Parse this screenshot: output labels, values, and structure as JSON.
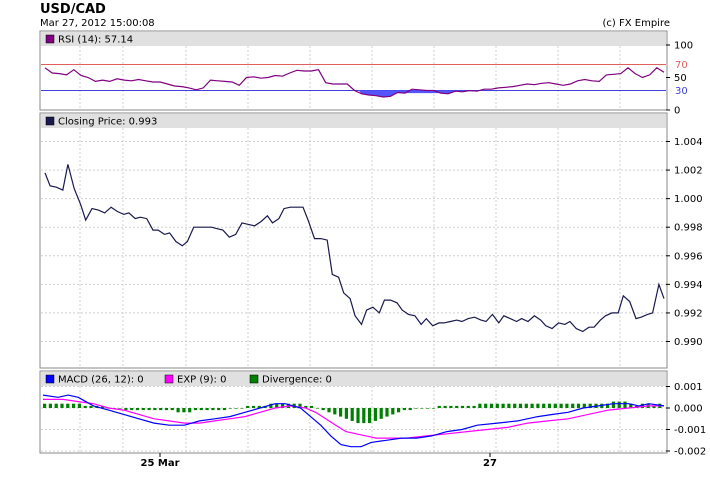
{
  "header": {
    "title": "USD/CAD",
    "timestamp": "Mar 27, 2012 15:00:08",
    "credit": "(c) FX Empire"
  },
  "colors": {
    "rsi": "#800080",
    "rsi_fill": "#5555ff",
    "rsi_upper": "#e06060",
    "rsi_lower": "#4040e0",
    "price": "#1a1a4e",
    "macd": "#0000ff",
    "exp": "#ff00ff",
    "divergence": "#008000",
    "header_bg": "#e0e0e0",
    "grid": "#d0d0d0"
  },
  "x_axis": {
    "labels": [
      "25 Mar",
      "27"
    ]
  },
  "chart_data": [
    {
      "type": "line",
      "name": "rsi",
      "legend": "RSI (14): 57.14",
      "ylim": [
        0,
        100
      ],
      "yticks": [
        0,
        50,
        100
      ],
      "levels": [
        {
          "label": "70",
          "value": 70
        },
        {
          "label": "30",
          "value": 30
        }
      ],
      "values": [
        65,
        57,
        56,
        54,
        62,
        53,
        50,
        44,
        46,
        44,
        48,
        46,
        45,
        47,
        45,
        43,
        43,
        40,
        37,
        36,
        34,
        31,
        34,
        46,
        45,
        44,
        43,
        38,
        50,
        51,
        49,
        50,
        53,
        52,
        57,
        61,
        60,
        60,
        62,
        42,
        40,
        40,
        40,
        30,
        25,
        23,
        22,
        20,
        21,
        27,
        26,
        32,
        31,
        30,
        30,
        26,
        25,
        29,
        28,
        30,
        29,
        32,
        32,
        34,
        35,
        36,
        38,
        40,
        39,
        41,
        42,
        40,
        38,
        40,
        45,
        47,
        45,
        44,
        54,
        55,
        56,
        65,
        56,
        50,
        54,
        65,
        58
      ],
      "x": [
        0,
        6,
        12,
        18,
        24,
        30,
        36,
        42,
        48,
        54,
        60,
        66,
        72,
        78,
        84,
        90,
        96,
        102,
        108,
        114,
        120,
        126,
        132,
        138,
        144,
        150,
        156,
        162,
        168,
        174,
        180,
        186,
        192,
        198,
        204,
        210,
        216,
        222,
        228,
        234,
        240,
        246,
        252,
        258,
        264,
        270,
        276,
        282,
        288,
        294,
        300,
        306,
        312,
        318,
        324,
        330,
        336,
        342,
        348,
        354,
        360,
        366,
        372,
        378,
        384,
        390,
        396,
        402,
        408,
        414,
        420,
        426,
        432,
        438,
        444,
        450,
        456,
        462,
        468,
        474,
        480,
        486,
        492,
        498,
        504,
        510,
        516
      ]
    },
    {
      "type": "line",
      "name": "closing-price",
      "legend": "Closing Price: 0.993",
      "ylim": [
        0.988,
        1.0053
      ],
      "yticks": [
        "0.990",
        "0.992",
        "0.994",
        "0.996",
        "0.998",
        "1.000",
        "1.002",
        "1.004"
      ],
      "points": [
        [
          0,
          1.0018
        ],
        [
          4,
          1.0009
        ],
        [
          9,
          1.0008
        ],
        [
          14,
          1.0006
        ],
        [
          18,
          1.0024
        ],
        [
          23,
          1.0007
        ],
        [
          28,
          0.9996
        ],
        [
          32,
          0.9985
        ],
        [
          37,
          0.9993
        ],
        [
          42,
          0.9992
        ],
        [
          47,
          0.999
        ],
        [
          52,
          0.9994
        ],
        [
          57,
          0.9991
        ],
        [
          62,
          0.9989
        ],
        [
          66,
          0.999
        ],
        [
          71,
          0.9986
        ],
        [
          75,
          0.9987
        ],
        [
          80,
          0.9986
        ],
        [
          85,
          0.9978
        ],
        [
          89,
          0.9978
        ],
        [
          94,
          0.9975
        ],
        [
          98,
          0.9976
        ],
        [
          103,
          0.997
        ],
        [
          108,
          0.9967
        ],
        [
          112,
          0.997
        ],
        [
          117,
          0.998
        ],
        [
          121,
          0.998
        ],
        [
          126,
          0.998
        ],
        [
          131,
          0.998
        ],
        [
          135,
          0.9979
        ],
        [
          140,
          0.9978
        ],
        [
          145,
          0.9973
        ],
        [
          150,
          0.9975
        ],
        [
          155,
          0.9983
        ],
        [
          160,
          0.9982
        ],
        [
          165,
          0.9981
        ],
        [
          170,
          0.9984
        ],
        [
          175,
          0.9988
        ],
        [
          179,
          0.9983
        ],
        [
          184,
          0.9986
        ],
        [
          188,
          0.9993
        ],
        [
          193,
          0.9994
        ],
        [
          198,
          0.9994
        ],
        [
          203,
          0.9994
        ],
        [
          207,
          0.9985
        ],
        [
          212,
          0.9972
        ],
        [
          217,
          0.9972
        ],
        [
          222,
          0.9971
        ],
        [
          226,
          0.9947
        ],
        [
          231,
          0.9945
        ],
        [
          235,
          0.9934
        ],
        [
          240,
          0.993
        ],
        [
          244,
          0.9918
        ],
        [
          249,
          0.9912
        ],
        [
          253,
          0.9922
        ],
        [
          258,
          0.9924
        ],
        [
          263,
          0.992
        ],
        [
          267,
          0.9929
        ],
        [
          272,
          0.9929
        ],
        [
          277,
          0.9927
        ],
        [
          281,
          0.9922
        ],
        [
          286,
          0.9919
        ],
        [
          291,
          0.9918
        ],
        [
          296,
          0.9912
        ],
        [
          300,
          0.9916
        ],
        [
          305,
          0.9911
        ],
        [
          310,
          0.9913
        ],
        [
          314,
          0.9913
        ],
        [
          319,
          0.9914
        ],
        [
          324,
          0.9915
        ],
        [
          328,
          0.9914
        ],
        [
          333,
          0.9916
        ],
        [
          338,
          0.9917
        ],
        [
          343,
          0.9915
        ],
        [
          347,
          0.9914
        ],
        [
          352,
          0.9919
        ],
        [
          357,
          0.9913
        ],
        [
          361,
          0.9918
        ],
        [
          366,
          0.9916
        ],
        [
          371,
          0.9914
        ],
        [
          375,
          0.9916
        ],
        [
          380,
          0.9914
        ],
        [
          385,
          0.9918
        ],
        [
          390,
          0.9915
        ],
        [
          394,
          0.9911
        ],
        [
          399,
          0.9909
        ],
        [
          404,
          0.9913
        ],
        [
          409,
          0.9912
        ],
        [
          413,
          0.9914
        ],
        [
          418,
          0.9909
        ],
        [
          423,
          0.9907
        ],
        [
          428,
          0.991
        ],
        [
          432,
          0.991
        ],
        [
          437,
          0.9915
        ],
        [
          441,
          0.9918
        ],
        [
          446,
          0.992
        ],
        [
          451,
          0.992
        ],
        [
          455,
          0.9932
        ],
        [
          460,
          0.9928
        ],
        [
          465,
          0.9916
        ],
        [
          469,
          0.9917
        ],
        [
          474,
          0.9919
        ],
        [
          478,
          0.992
        ],
        [
          483,
          0.994
        ],
        [
          487,
          0.993
        ]
      ]
    },
    {
      "type": "line",
      "name": "macd",
      "legend_macd": "MACD (26, 12): 0",
      "legend_exp": "EXP (9): 0",
      "legend_div": "Divergence: 0",
      "ylim": [
        -0.0021,
        0.0012
      ],
      "yticks": [
        "0.001",
        "0.000",
        "-0.001",
        "-0.002"
      ],
      "macd": [
        [
          0,
          0.0006
        ],
        [
          15,
          0.0005
        ],
        [
          25,
          0.0006
        ],
        [
          35,
          0.0005
        ],
        [
          50,
          0.0001
        ],
        [
          65,
          -0.0001
        ],
        [
          80,
          -0.0003
        ],
        [
          95,
          -0.0005
        ],
        [
          110,
          -0.0007
        ],
        [
          125,
          -0.0008
        ],
        [
          140,
          -0.0008
        ],
        [
          155,
          -0.0006
        ],
        [
          170,
          -0.0005
        ],
        [
          185,
          -0.0004
        ],
        [
          200,
          -0.0002
        ],
        [
          215,
          0.0
        ],
        [
          230,
          0.0002
        ],
        [
          240,
          0.0002
        ],
        [
          255,
          0.0
        ],
        [
          265,
          -0.0004
        ],
        [
          275,
          -0.0008
        ],
        [
          285,
          -0.0013
        ],
        [
          295,
          -0.0017
        ],
        [
          305,
          -0.0018
        ],
        [
          315,
          -0.0018
        ],
        [
          325,
          -0.0016
        ],
        [
          340,
          -0.0015
        ],
        [
          355,
          -0.0014
        ],
        [
          370,
          -0.0014
        ],
        [
          385,
          -0.0013
        ],
        [
          400,
          -0.0011
        ],
        [
          415,
          -0.001
        ],
        [
          430,
          -0.0008
        ],
        [
          450,
          -0.0007
        ],
        [
          470,
          -0.0006
        ],
        [
          490,
          -0.0004
        ],
        [
          505,
          -0.0003
        ],
        [
          520,
          -0.0002
        ],
        [
          535,
          0.0
        ],
        [
          550,
          0.0001
        ],
        [
          565,
          0.0002
        ],
        [
          580,
          0.0002
        ],
        [
          590,
          0.0001
        ],
        [
          600,
          0.0002
        ],
        [
          615,
          0.0001
        ]
      ],
      "exp": [
        [
          0,
          0.0004
        ],
        [
          20,
          0.0004
        ],
        [
          35,
          0.0003
        ],
        [
          50,
          0.0002
        ],
        [
          65,
          0.0
        ],
        [
          80,
          -0.0001
        ],
        [
          95,
          -0.0003
        ],
        [
          110,
          -0.0005
        ],
        [
          125,
          -0.0006
        ],
        [
          140,
          -0.0007
        ],
        [
          155,
          -0.0007
        ],
        [
          170,
          -0.0006
        ],
        [
          185,
          -0.0005
        ],
        [
          200,
          -0.0004
        ],
        [
          215,
          -0.0002
        ],
        [
          230,
          0.0
        ],
        [
          245,
          0.0001
        ],
        [
          260,
          0.0
        ],
        [
          270,
          -0.0002
        ],
        [
          280,
          -0.0005
        ],
        [
          290,
          -0.0008
        ],
        [
          300,
          -0.0011
        ],
        [
          310,
          -0.0012
        ],
        [
          320,
          -0.0013
        ],
        [
          330,
          -0.0014
        ],
        [
          340,
          -0.0014
        ],
        [
          360,
          -0.0014
        ],
        [
          380,
          -0.0013
        ],
        [
          400,
          -0.0012
        ],
        [
          420,
          -0.0011
        ],
        [
          440,
          -0.001
        ],
        [
          460,
          -0.0009
        ],
        [
          480,
          -0.0007
        ],
        [
          500,
          -0.0006
        ],
        [
          520,
          -0.0005
        ],
        [
          540,
          -0.0003
        ],
        [
          560,
          -0.0001
        ],
        [
          580,
          0.0
        ],
        [
          600,
          0.0001
        ],
        [
          615,
          0.0001
        ]
      ],
      "divergence": [
        0.0002,
        0.0002,
        0.0002,
        0.0002,
        0.0002,
        0.0002,
        0.0002,
        0.0001,
        0.0001,
        0.0001,
        0.0001,
        0.0,
        0.0,
        0.0,
        -0.0001,
        -0.0001,
        -0.0001,
        -0.0001,
        -0.0001,
        -0.0001,
        -0.0001,
        -0.0001,
        -0.0001,
        -0.0002,
        -0.0002,
        -0.0002,
        -0.0001,
        -0.0001,
        -0.0001,
        -0.0001,
        -0.0001,
        -0.0001,
        0.0,
        0.0,
        0.0,
        0.0001,
        0.0001,
        0.0001,
        0.0001,
        0.0002,
        0.0002,
        0.0002,
        0.0002,
        0.0002,
        0.0002,
        0.0001,
        0.0001,
        0.0,
        -0.0001,
        -0.0002,
        -0.0003,
        -0.0004,
        -0.0005,
        -0.0006,
        -0.0007,
        -0.0007,
        -0.0007,
        -0.0006,
        -0.0005,
        -0.0004,
        -0.0003,
        -0.0002,
        -0.0001,
        -0.0001,
        0.0,
        0.0,
        0.0,
        0.0,
        0.0001,
        0.0001,
        0.0001,
        0.0001,
        0.0001,
        0.0001,
        0.0001,
        0.0002,
        0.0002,
        0.0002,
        0.0002,
        0.0002,
        0.0002,
        0.0002,
        0.0002,
        0.0002,
        0.0002,
        0.0002,
        0.0002,
        0.0002,
        0.0002,
        0.0002,
        0.0002,
        0.0002,
        0.0002,
        0.0002,
        0.0002,
        0.0002,
        0.0002,
        0.0002,
        0.0003,
        0.0003,
        0.0003,
        0.0002,
        0.0001,
        0.0002,
        0.0002,
        0.0001,
        0.0002
      ]
    }
  ]
}
